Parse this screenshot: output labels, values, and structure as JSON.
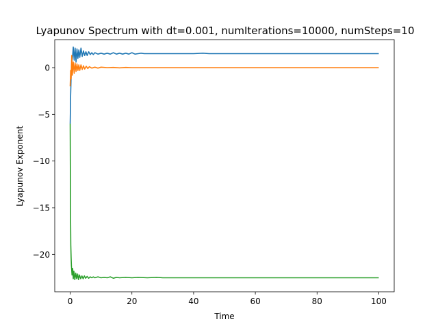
{
  "chart_data": {
    "type": "line",
    "title": "Lyapunov Spectrum with  dt=0.001, numIterations=10000, numSteps=10",
    "xlabel": "Time",
    "ylabel": "Lyapunov Exponent",
    "xlim": [
      -5,
      105
    ],
    "ylim": [
      -24,
      3
    ],
    "xticks": [
      0,
      20,
      40,
      60,
      80,
      100
    ],
    "yticks": [
      -20,
      -15,
      -10,
      -5,
      0
    ],
    "ytick_labels": [
      "−20",
      "−15",
      "−10",
      "−5",
      "0"
    ],
    "grid": false,
    "legend": false,
    "series": [
      {
        "color": "#1f77b4",
        "x": [
          0,
          0.15,
          0.3,
          0.5,
          0.8,
          1.0,
          1.3,
          1.6,
          1.9,
          2.2,
          2.5,
          2.8,
          3.1,
          3.5,
          3.9,
          4.3,
          4.7,
          5.1,
          5.5,
          6.0,
          6.5,
          7.0,
          7.5,
          8.0,
          9.0,
          10.0,
          11.0,
          12.0,
          13.0,
          14.0,
          15.0,
          16.0,
          17.0,
          18.0,
          19.0,
          20.0,
          21.0,
          22.0,
          23.0,
          24.0,
          26.0,
          28.0,
          30.0,
          35.0,
          40.0,
          43.0,
          45.0,
          50.0,
          55.0,
          60.0,
          65.0,
          70.0,
          75.0,
          80.0,
          85.0,
          90.0,
          95.0,
          100.0
        ],
        "y": [
          -6.0,
          -3.0,
          -1.0,
          0.5,
          1.3,
          2.2,
          0.8,
          2.1,
          0.6,
          2.0,
          1.0,
          1.9,
          1.1,
          2.1,
          1.2,
          1.8,
          1.3,
          1.7,
          1.3,
          1.7,
          1.4,
          1.6,
          1.4,
          1.6,
          1.45,
          1.55,
          1.45,
          1.55,
          1.45,
          1.6,
          1.45,
          1.55,
          1.45,
          1.55,
          1.45,
          1.6,
          1.45,
          1.5,
          1.55,
          1.5,
          1.5,
          1.5,
          1.5,
          1.5,
          1.5,
          1.55,
          1.5,
          1.5,
          1.5,
          1.5,
          1.5,
          1.5,
          1.5,
          1.5,
          1.5,
          1.5,
          1.5,
          1.5
        ]
      },
      {
        "color": "#ff7f0e",
        "x": [
          0,
          0.15,
          0.3,
          0.5,
          0.7,
          1.0,
          1.3,
          1.6,
          1.9,
          2.2,
          2.5,
          2.8,
          3.1,
          3.5,
          3.9,
          4.3,
          4.7,
          5.2,
          5.7,
          6.2,
          7.0,
          8.0,
          9.0,
          10.0,
          12.0,
          14.0,
          16.0,
          18.0,
          20.0,
          25.0,
          30.0,
          40.0,
          50.0,
          60.0,
          70.0,
          80.0,
          90.0,
          100.0
        ],
        "y": [
          -2.0,
          -0.3,
          -1.2,
          1.3,
          -0.8,
          0.6,
          -0.6,
          0.5,
          -0.4,
          0.4,
          -0.3,
          0.3,
          -0.3,
          0.3,
          -0.2,
          0.2,
          -0.15,
          0.15,
          -0.1,
          0.1,
          -0.05,
          0.05,
          -0.05,
          0.05,
          0,
          0.02,
          -0.02,
          0.02,
          0,
          0,
          0,
          0,
          0,
          0,
          0,
          0,
          0,
          0
        ]
      },
      {
        "color": "#2ca02c",
        "x": [
          0,
          0.1,
          0.2,
          0.3,
          0.4,
          0.6,
          0.8,
          1.0,
          1.2,
          1.5,
          1.8,
          2.1,
          2.4,
          2.7,
          3.0,
          3.4,
          3.8,
          4.2,
          4.6,
          5.0,
          5.5,
          6.0,
          6.5,
          7.0,
          7.5,
          8.0,
          9.0,
          10.0,
          11.0,
          12.0,
          13.0,
          14.0,
          15.0,
          16.0,
          18.0,
          20.0,
          22.0,
          25.0,
          28.0,
          30.0,
          35.0,
          40.0,
          45.0,
          50.0,
          60.0,
          70.0,
          80.0,
          90.0,
          100.0
        ],
        "y": [
          -6.0,
          -14.5,
          -19.0,
          -20.3,
          -21.2,
          -22.2,
          -21.5,
          -22.6,
          -21.8,
          -22.7,
          -22.0,
          -22.6,
          -22.1,
          -22.7,
          -22.2,
          -22.6,
          -22.3,
          -22.6,
          -22.3,
          -22.55,
          -22.35,
          -22.55,
          -22.4,
          -22.5,
          -22.4,
          -22.5,
          -22.4,
          -22.5,
          -22.45,
          -22.5,
          -22.4,
          -22.55,
          -22.45,
          -22.5,
          -22.45,
          -22.5,
          -22.45,
          -22.5,
          -22.45,
          -22.5,
          -22.5,
          -22.5,
          -22.5,
          -22.5,
          -22.5,
          -22.5,
          -22.5,
          -22.5,
          -22.5
        ]
      }
    ]
  }
}
